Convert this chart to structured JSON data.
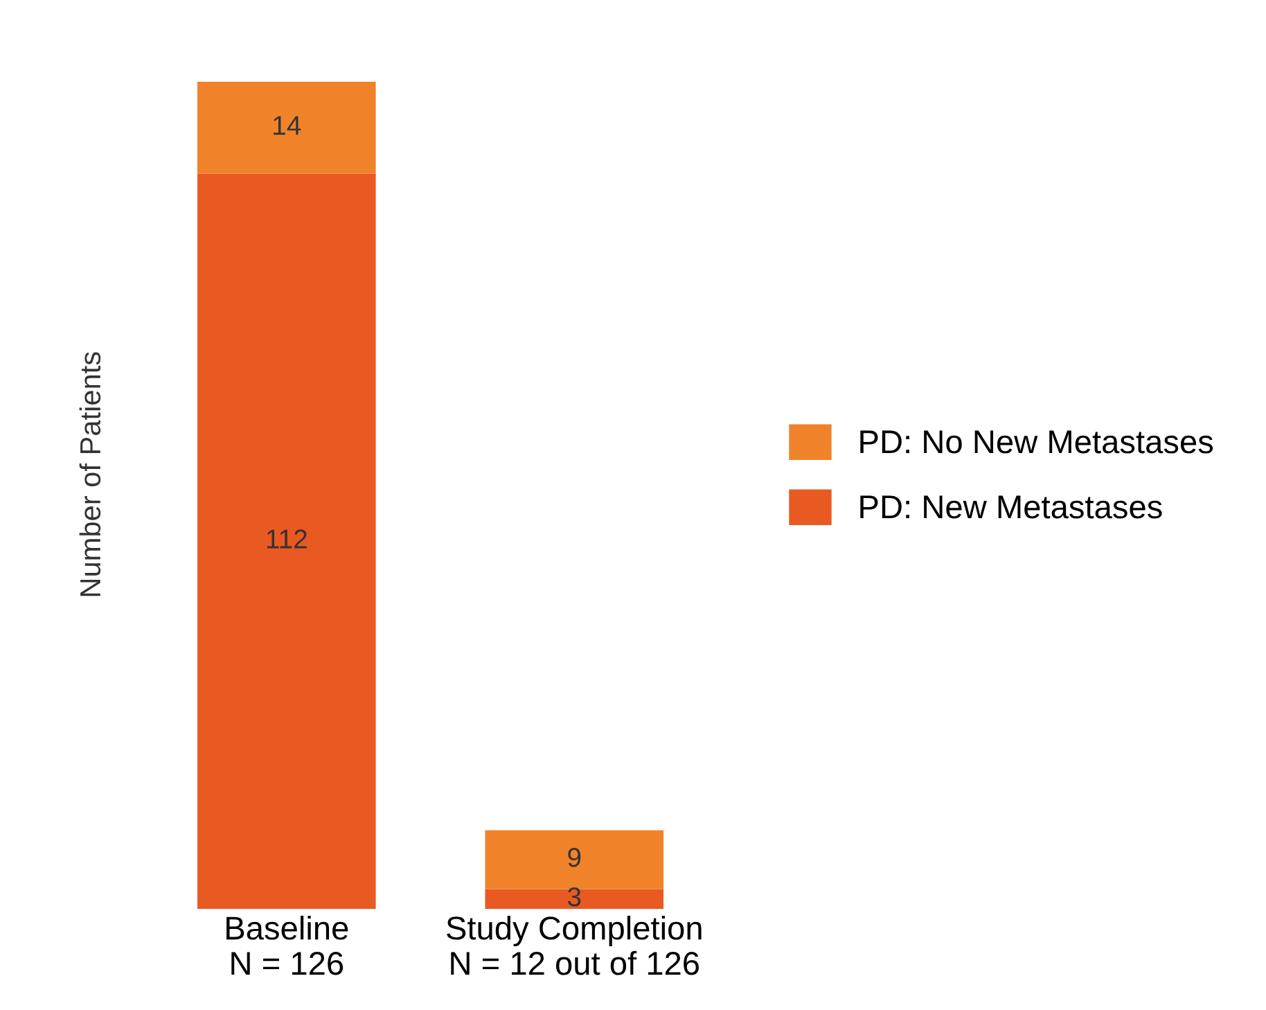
{
  "chart_data": {
    "type": "bar",
    "stacked": true,
    "ylabel": "Number of Patients",
    "categories": [
      "Baseline\nN = 126",
      "Study Completion\nN = 12 out of 126"
    ],
    "series": [
      {
        "name": "PD: New Metastases",
        "color": "#e85a22",
        "values": [
          112,
          3
        ]
      },
      {
        "name": "PD: No New Metastases",
        "color": "#f0832a",
        "values": [
          14,
          9
        ]
      }
    ],
    "data_labels": true,
    "legend": "right",
    "tick_labels": "x",
    "grid": false
  }
}
